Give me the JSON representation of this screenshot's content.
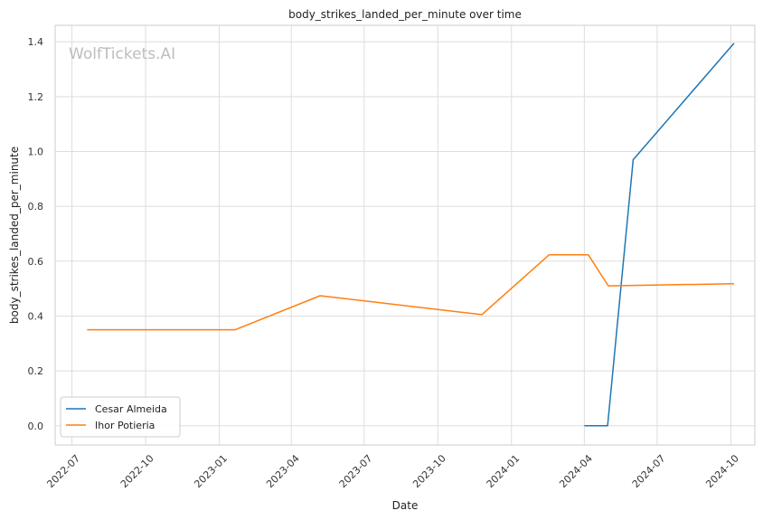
{
  "chart_data": {
    "type": "line",
    "title": "body_strikes_landed_per_minute over time",
    "xlabel": "Date",
    "ylabel": "body_strikes_landed_per_minute",
    "watermark": "WolfTickets.AI",
    "x_axis_kind": "date",
    "xlim": [
      "2022-06-10",
      "2024-10-31"
    ],
    "ylim": [
      -0.07,
      1.46
    ],
    "x_ticks": [
      "2022-07-01",
      "2022-10-01",
      "2023-01-01",
      "2023-04-01",
      "2023-07-01",
      "2023-10-01",
      "2024-01-01",
      "2024-04-01",
      "2024-07-01",
      "2024-10-01"
    ],
    "x_tick_labels": [
      "2022-07",
      "2022-10",
      "2023-01",
      "2023-04",
      "2023-07",
      "2023-10",
      "2024-01",
      "2024-04",
      "2024-07",
      "2024-10"
    ],
    "y_ticks": [
      0.0,
      0.2,
      0.4,
      0.6,
      0.8,
      1.0,
      1.2,
      1.4
    ],
    "y_tick_labels": [
      "0.0",
      "0.2",
      "0.4",
      "0.6",
      "0.8",
      "1.0",
      "1.2",
      "1.4"
    ],
    "grid": true,
    "legend_position": "lower-left",
    "series": [
      {
        "name": "Cesar Almeida",
        "color": "#1f77b4",
        "x": [
          "2024-04-01",
          "2024-04-30",
          "2024-06-01",
          "2024-10-05"
        ],
        "y": [
          0.0,
          0.0,
          0.97,
          1.395
        ]
      },
      {
        "name": "Ihor Potieria",
        "color": "#ff7f0e",
        "x": [
          "2022-07-20",
          "2023-01-21",
          "2023-05-07",
          "2023-11-25",
          "2024-02-17",
          "2024-04-06",
          "2024-05-01",
          "2024-10-05"
        ],
        "y": [
          0.35,
          0.35,
          0.474,
          0.405,
          0.623,
          0.623,
          0.51,
          0.518
        ]
      }
    ]
  }
}
